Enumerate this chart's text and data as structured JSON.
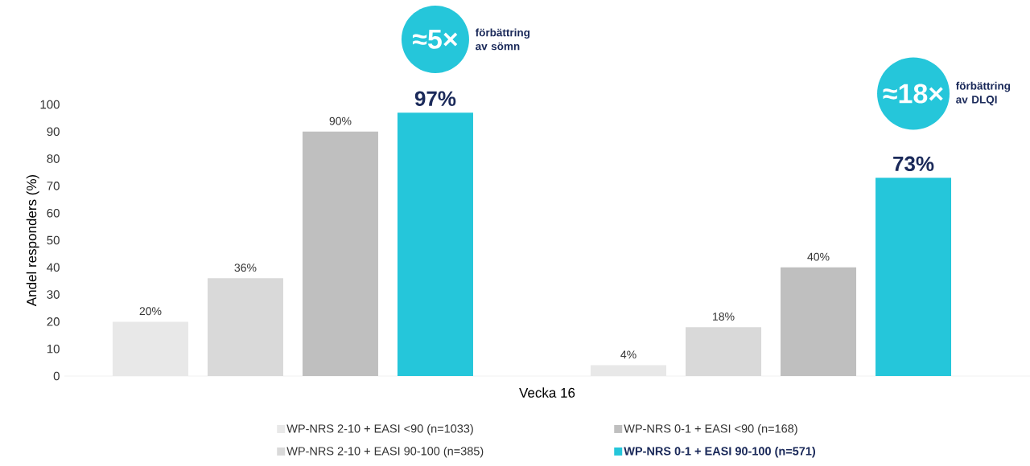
{
  "chart_data": {
    "type": "bar",
    "categories": [
      null,
      null
    ],
    "xlabel": "Vecka 16",
    "ylabel": "Andel responders (%)",
    "ylim": [
      0,
      100
    ],
    "yticks": [
      0,
      10,
      20,
      30,
      40,
      50,
      60,
      70,
      80,
      90,
      100
    ],
    "grid": false,
    "legend": "bottom",
    "series": [
      {
        "name": "WP-NRS 2-10 + EASI <90 (n=1033)",
        "color": "#e8e8e8",
        "values": [
          20,
          4
        ],
        "value_labels": [
          "20%",
          "4%"
        ]
      },
      {
        "name": "WP-NRS 2-10 + EASI 90-100 (n=385)",
        "color": "#d9d9d9",
        "values": [
          36,
          18
        ],
        "value_labels": [
          "36%",
          "18%"
        ]
      },
      {
        "name": "WP-NRS 0-1 + EASI <90 (n=168)",
        "color": "#bfbfbf",
        "values": [
          90,
          40
        ],
        "value_labels": [
          "90%",
          "40%"
        ]
      },
      {
        "name": "WP-NRS 0-1 + EASI 90-100 (n=571)",
        "color": "#25c6da",
        "values": [
          97,
          73
        ],
        "value_labels": [
          "97%",
          "73%"
        ]
      }
    ],
    "annotations": [
      "≈5×",
      "förbättring av sömn",
      "≈18×",
      "förbättring av DLQI"
    ]
  }
}
